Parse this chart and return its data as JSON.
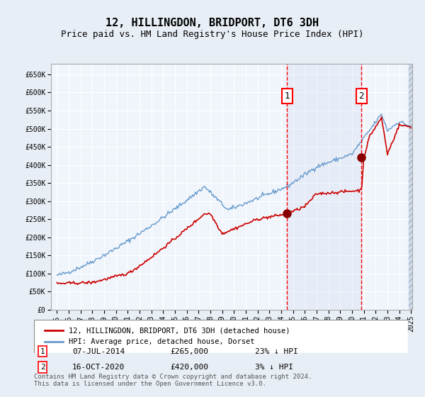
{
  "title": "12, HILLINGDON, BRIDPORT, DT6 3DH",
  "subtitle": "Price paid vs. HM Land Registry's House Price Index (HPI)",
  "legend_label_red": "12, HILLINGDON, BRIDPORT, DT6 3DH (detached house)",
  "legend_label_blue": "HPI: Average price, detached house, Dorset",
  "annotation1_label": "1",
  "annotation1_date": "07-JUL-2014",
  "annotation1_price": 265000,
  "annotation1_note": "23% ↓ HPI",
  "annotation2_label": "2",
  "annotation2_date": "16-OCT-2020",
  "annotation2_price": 420000,
  "annotation2_note": "3% ↓ HPI",
  "footer": "Contains HM Land Registry data © Crown copyright and database right 2024.\nThis data is licensed under the Open Government Licence v3.0.",
  "bg_color": "#dce8f5",
  "plot_bg_color": "#f0f5fc",
  "hatch_color": "#c0c8d8",
  "red_color": "#cc0000",
  "blue_color": "#6699cc",
  "grid_color": "#ffffff",
  "ylim": [
    0,
    680000
  ],
  "ytick_step": 50000,
  "xlabel": "",
  "ylabel": ""
}
